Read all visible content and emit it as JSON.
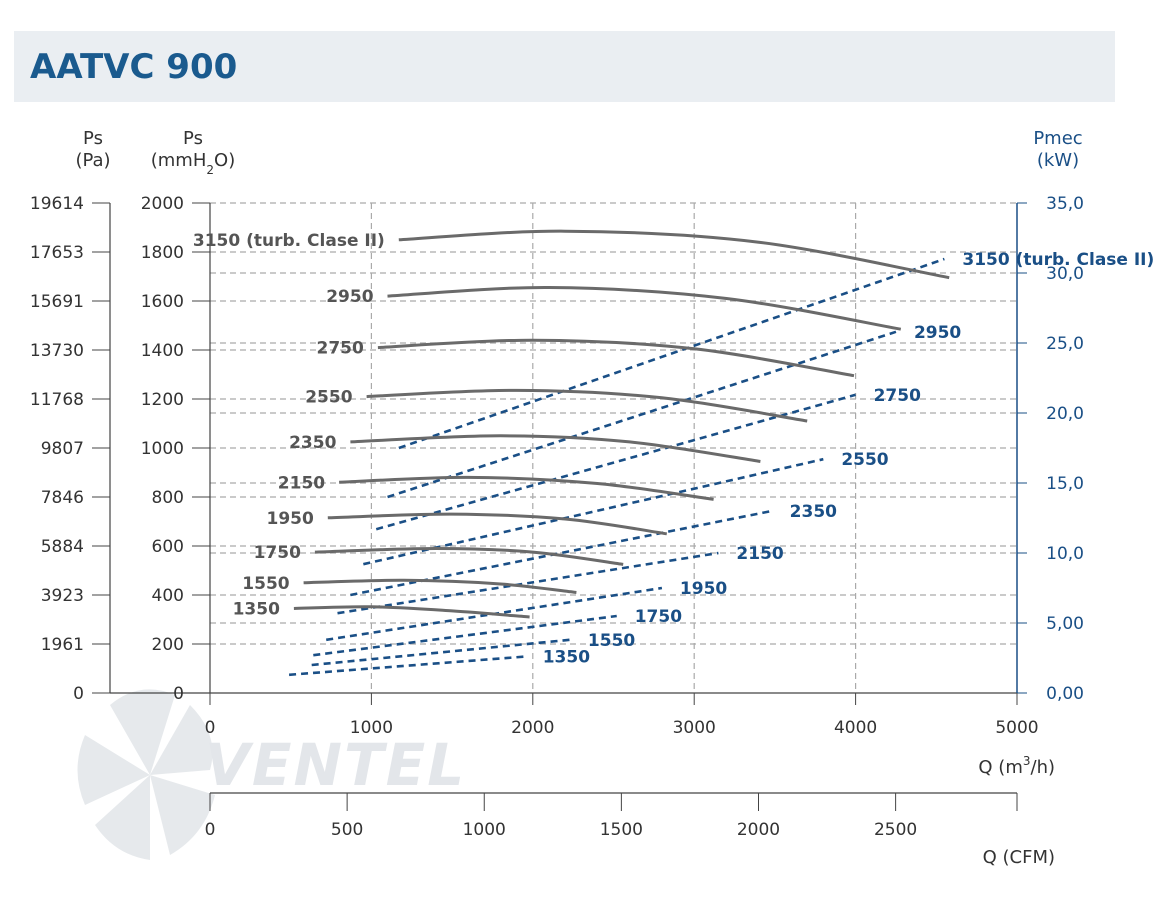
{
  "title": "AATVC 900",
  "watermark": "VENTEL",
  "colors": {
    "ps_curve": "#6a6a6a",
    "power_curve": "#1a4f86",
    "title": "#1a5a8e",
    "grid": "#aaaaaa"
  },
  "axes": {
    "left_pa": {
      "label_line1": "Ps",
      "label_line2": "(Pa)",
      "ticks": [
        "0",
        "1961",
        "3923",
        "5884",
        "7846",
        "9807",
        "11768",
        "13730",
        "15691",
        "17653",
        "19614"
      ]
    },
    "left_mm": {
      "label_line1": "Ps",
      "label_pre": "(mmH",
      "label_sub": "2",
      "label_post": "O)",
      "ticks": [
        "0",
        "200",
        "400",
        "600",
        "800",
        "1000",
        "1200",
        "1400",
        "1600",
        "1800",
        "2000"
      ],
      "ylim": [
        0,
        2000
      ]
    },
    "right_kw": {
      "label_line1": "Pmec",
      "label_line2": "(kW)",
      "ticks": [
        "0,00",
        "5,00",
        "10,0",
        "15,0",
        "20,0",
        "25,0",
        "30,0",
        "35,0"
      ],
      "ylim": [
        0,
        35
      ]
    },
    "bottom_m3h": {
      "label_pre": "Q (m",
      "label_sup": "3",
      "label_post": "/h)",
      "ticks": [
        "0",
        "1000",
        "2000",
        "3000",
        "4000",
        "5000"
      ],
      "xlim": [
        0,
        5000
      ]
    },
    "bottom_cfm": {
      "label": "Q (CFM)",
      "ticks": [
        "0",
        "500",
        "1000",
        "1500",
        "2000",
        "2500"
      ],
      "xlim": [
        0,
        2942.6
      ]
    }
  },
  "chart_data": {
    "type": "line",
    "title": "AATVC 900",
    "xlabel": "Q (m3/h)",
    "ylabel": "Ps (mmH2O)",
    "y2label": "Pmec (kW)",
    "xlim": [
      0,
      5000
    ],
    "ylim": [
      0,
      2000
    ],
    "y2lim": [
      0,
      35
    ],
    "grid": true,
    "ps_series": [
      {
        "name": "1350",
        "label": "1350",
        "x": [
          520,
          1000,
          1500,
          1980
        ],
        "y": [
          345,
          352,
          335,
          310
        ]
      },
      {
        "name": "1550",
        "label": "1550",
        "x": [
          580,
          1200,
          1800,
          2270
        ],
        "y": [
          450,
          460,
          445,
          410
        ]
      },
      {
        "name": "1750",
        "label": "1750",
        "x": [
          650,
          1400,
          2000,
          2560
        ],
        "y": [
          575,
          590,
          575,
          525
        ]
      },
      {
        "name": "1950",
        "label": "1950",
        "x": [
          730,
          1500,
          2200,
          2830
        ],
        "y": [
          715,
          730,
          710,
          650
        ]
      },
      {
        "name": "2150",
        "label": "2150",
        "x": [
          800,
          1600,
          2400,
          3120
        ],
        "y": [
          860,
          880,
          855,
          790
        ]
      },
      {
        "name": "2350",
        "label": "2350",
        "x": [
          870,
          1800,
          2600,
          3410
        ],
        "y": [
          1025,
          1050,
          1025,
          945
        ]
      },
      {
        "name": "2550",
        "label": "2550",
        "x": [
          970,
          1900,
          2800,
          3700
        ],
        "y": [
          1210,
          1235,
          1205,
          1110
        ]
      },
      {
        "name": "2750",
        "label": "2750",
        "x": [
          1040,
          2000,
          3000,
          3990
        ],
        "y": [
          1410,
          1440,
          1405,
          1295
        ]
      },
      {
        "name": "2950",
        "label": "2950",
        "x": [
          1100,
          2100,
          3200,
          4280
        ],
        "y": [
          1620,
          1655,
          1610,
          1485
        ]
      },
      {
        "name": "3150 (turb. Clase II)",
        "label": "3150 (turb. Clase II)",
        "x": [
          1170,
          2200,
          3400,
          4580
        ],
        "y": [
          1850,
          1885,
          1840,
          1695
        ]
      }
    ],
    "power_series": [
      {
        "name": "1350",
        "label": "1350",
        "x": [
          490,
          1950
        ],
        "y": [
          1.3,
          2.6
        ]
      },
      {
        "name": "1550",
        "label": "1550",
        "x": [
          630,
          2230
        ],
        "y": [
          2.0,
          3.8
        ]
      },
      {
        "name": "1750",
        "label": "1750",
        "x": [
          640,
          2520
        ],
        "y": [
          2.7,
          5.5
        ]
      },
      {
        "name": "1950",
        "label": "1950",
        "x": [
          720,
          2800
        ],
        "y": [
          3.8,
          7.5
        ]
      },
      {
        "name": "2150",
        "label": "2150",
        "x": [
          790,
          3150
        ],
        "y": [
          5.7,
          10.0
        ]
      },
      {
        "name": "2350",
        "label": "2350",
        "x": [
          870,
          3480
        ],
        "y": [
          7.0,
          13.0
        ]
      },
      {
        "name": "2550",
        "label": "2550",
        "x": [
          950,
          3800
        ],
        "y": [
          9.2,
          16.7
        ]
      },
      {
        "name": "2750",
        "label": "2750",
        "x": [
          1030,
          4000
        ],
        "y": [
          11.7,
          21.3
        ]
      },
      {
        "name": "2950",
        "label": "2950",
        "x": [
          1100,
          4250
        ],
        "y": [
          14.0,
          25.8
        ]
      },
      {
        "name": "3150 (turb. Clase II)",
        "label": "3150 (turb. Clase II)",
        "x": [
          1170,
          4550
        ],
        "y": [
          17.5,
          31.0
        ]
      }
    ]
  }
}
